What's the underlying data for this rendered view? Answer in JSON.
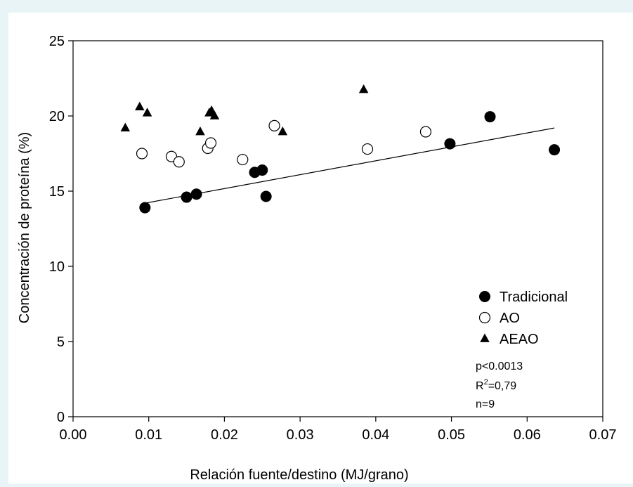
{
  "chart_data": {
    "type": "scatter",
    "title": "",
    "xlabel": "Relación fuente/destino (MJ/grano)",
    "ylabel": "Concentración de proteína (%)",
    "xlim": [
      0.0,
      0.07
    ],
    "ylim": [
      0,
      25
    ],
    "x_ticks": [
      "0.00",
      "0.01",
      "0.02",
      "0.03",
      "0.04",
      "0.05",
      "0.06",
      "0.07"
    ],
    "y_ticks": [
      "0",
      "5",
      "10",
      "15",
      "20",
      "25"
    ],
    "grid": false,
    "legend_position": "bottom-right",
    "series": [
      {
        "name": "Tradicional",
        "marker": "filled-circle",
        "points": [
          {
            "x": 0.0095,
            "y": 13.9
          },
          {
            "x": 0.015,
            "y": 14.6
          },
          {
            "x": 0.0163,
            "y": 14.8
          },
          {
            "x": 0.024,
            "y": 16.25
          },
          {
            "x": 0.025,
            "y": 16.4
          },
          {
            "x": 0.0255,
            "y": 14.65
          },
          {
            "x": 0.0498,
            "y": 18.15
          },
          {
            "x": 0.0551,
            "y": 19.95
          },
          {
            "x": 0.0636,
            "y": 17.75
          }
        ]
      },
      {
        "name": "AO",
        "marker": "open-circle",
        "points": [
          {
            "x": 0.0091,
            "y": 17.5
          },
          {
            "x": 0.013,
            "y": 17.3
          },
          {
            "x": 0.014,
            "y": 16.95
          },
          {
            "x": 0.0178,
            "y": 17.85
          },
          {
            "x": 0.0182,
            "y": 18.2
          },
          {
            "x": 0.0224,
            "y": 17.1
          },
          {
            "x": 0.0266,
            "y": 19.35
          },
          {
            "x": 0.0389,
            "y": 17.8
          },
          {
            "x": 0.0466,
            "y": 18.95
          }
        ]
      },
      {
        "name": "AEAO",
        "marker": "filled-triangle",
        "points": [
          {
            "x": 0.0069,
            "y": 19.2
          },
          {
            "x": 0.0088,
            "y": 20.6
          },
          {
            "x": 0.0098,
            "y": 20.2
          },
          {
            "x": 0.0168,
            "y": 18.95
          },
          {
            "x": 0.018,
            "y": 20.2
          },
          {
            "x": 0.0183,
            "y": 20.35
          },
          {
            "x": 0.0187,
            "y": 20.0
          },
          {
            "x": 0.0277,
            "y": 18.95
          },
          {
            "x": 0.0384,
            "y": 21.75
          }
        ]
      }
    ],
    "trendline": {
      "series": "Tradicional",
      "x": [
        0.0095,
        0.0636
      ],
      "y": [
        14.2,
        19.2
      ]
    },
    "stats": [
      "p<0.0013",
      "R",
      "2",
      "=0,79",
      "n=9"
    ]
  }
}
